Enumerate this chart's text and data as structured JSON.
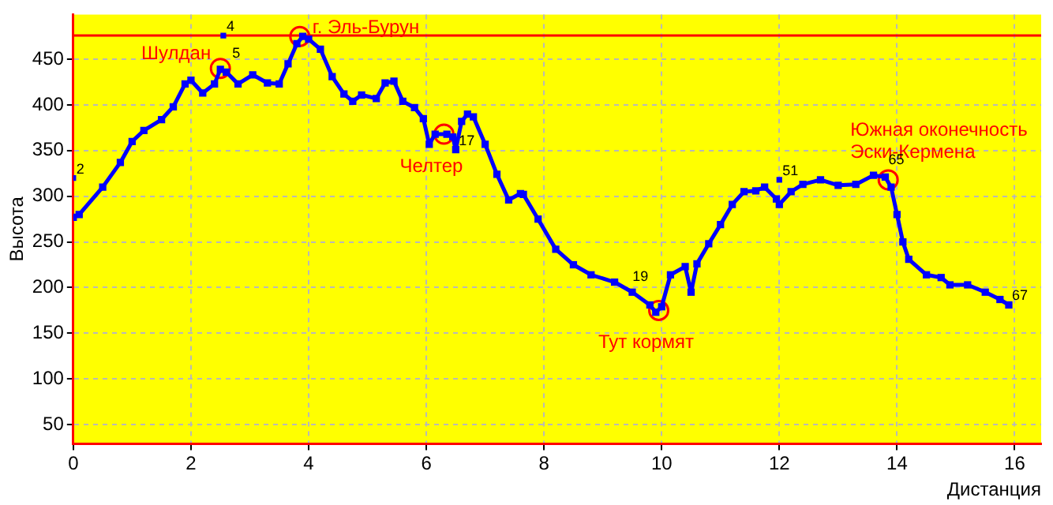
{
  "chart_data": {
    "type": "line",
    "xlabel": "Дистанция",
    "ylabel": "Высота",
    "xlim": [
      0,
      16.45
    ],
    "ylim": [
      29,
      499
    ],
    "xticks": [
      0,
      2,
      4,
      6,
      8,
      10,
      12,
      14,
      16
    ],
    "yticks": [
      50,
      100,
      150,
      200,
      250,
      300,
      350,
      400,
      450
    ],
    "grid": true,
    "legend": false,
    "marker": "square",
    "line_style": "solid",
    "series": [
      {
        "color": "#0000ff",
        "x": [
          0,
          0.1,
          0.5,
          0.8,
          1.0,
          1.2,
          1.5,
          1.7,
          1.9,
          2.0,
          2.2,
          2.4,
          2.5,
          2.6,
          2.8,
          3.05,
          3.3,
          3.5,
          3.65,
          3.8,
          3.9,
          4.0,
          4.2,
          4.4,
          4.6,
          4.75,
          4.9,
          5.15,
          5.3,
          5.45,
          5.6,
          5.8,
          5.95,
          6.05,
          6.15,
          6.35,
          6.45,
          6.5,
          6.6,
          6.7,
          6.8,
          7.0,
          7.2,
          7.4,
          7.6,
          7.65,
          7.9,
          8.2,
          8.5,
          8.8,
          9.2,
          9.5,
          9.8,
          9.9,
          10.0,
          10.15,
          10.4,
          10.5,
          10.6,
          10.8,
          11.0,
          11.2,
          11.4,
          11.6,
          11.75,
          11.95,
          12.0,
          12.2,
          12.4,
          12.7,
          13.0,
          13.3,
          13.6,
          13.8,
          13.9,
          14.0,
          14.1,
          14.2,
          14.5,
          14.75,
          14.9,
          15.2,
          15.5,
          15.75,
          15.9
        ],
        "values": [
          277,
          280,
          310,
          337,
          360,
          372,
          384,
          398,
          423,
          427,
          413,
          423,
          439,
          436,
          423,
          433,
          424,
          423,
          445,
          467,
          475,
          472,
          461,
          431,
          412,
          404,
          411,
          407,
          424,
          426,
          404,
          397,
          385,
          357,
          368,
          368,
          365,
          351,
          382,
          390,
          387,
          357,
          324,
          296,
          303,
          302,
          275,
          242,
          225,
          214,
          206,
          195,
          181,
          173,
          179,
          214,
          223,
          195,
          226,
          248,
          269,
          291,
          305,
          306,
          310,
          297,
          291,
          305,
          313,
          318,
          312,
          313,
          323,
          321,
          310,
          280,
          250,
          231,
          214,
          211,
          203,
          203,
          195,
          187,
          181
        ]
      },
      {
        "type": "scatter",
        "color": "#0000ff",
        "marker": "square",
        "x": [
          0,
          2.55,
          12.0
        ],
        "values": [
          320,
          476,
          318
        ]
      },
      {
        "type": "scatter",
        "color": "#ff0000",
        "marker": "circle",
        "x": [
          2.5,
          3.85,
          6.3,
          9.95,
          13.85
        ],
        "values": [
          440,
          475,
          368,
          175,
          318
        ]
      }
    ],
    "ref_lines": [
      {
        "axis": "y",
        "value": 476,
        "color": "#ff0000"
      }
    ],
    "annotations": [
      {
        "text": "Шулдан",
        "x": 2.5,
        "y": 440
      },
      {
        "text": "г. Эль-Бурун",
        "x": 3.85,
        "y": 475
      },
      {
        "text": "Челтер",
        "x": 6.3,
        "y": 368
      },
      {
        "text": "Тут кормят",
        "x": 9.95,
        "y": 175
      },
      {
        "text": "Южная оконечность\nЭски-Кермена",
        "x": 13.85,
        "y": 318
      },
      {
        "text": "2",
        "x": 0,
        "y": 320
      },
      {
        "text": "4",
        "x": 2.55,
        "y": 476
      },
      {
        "text": "5",
        "x": 2.65,
        "y": 447
      },
      {
        "text": "17",
        "x": 6.5,
        "y": 351
      },
      {
        "text": "19",
        "x": 9.45,
        "y": 202
      },
      {
        "text": "51",
        "x": 12.0,
        "y": 318
      },
      {
        "text": "65",
        "x": 13.8,
        "y": 330
      },
      {
        "text": "67",
        "x": 15.9,
        "y": 181
      }
    ]
  }
}
